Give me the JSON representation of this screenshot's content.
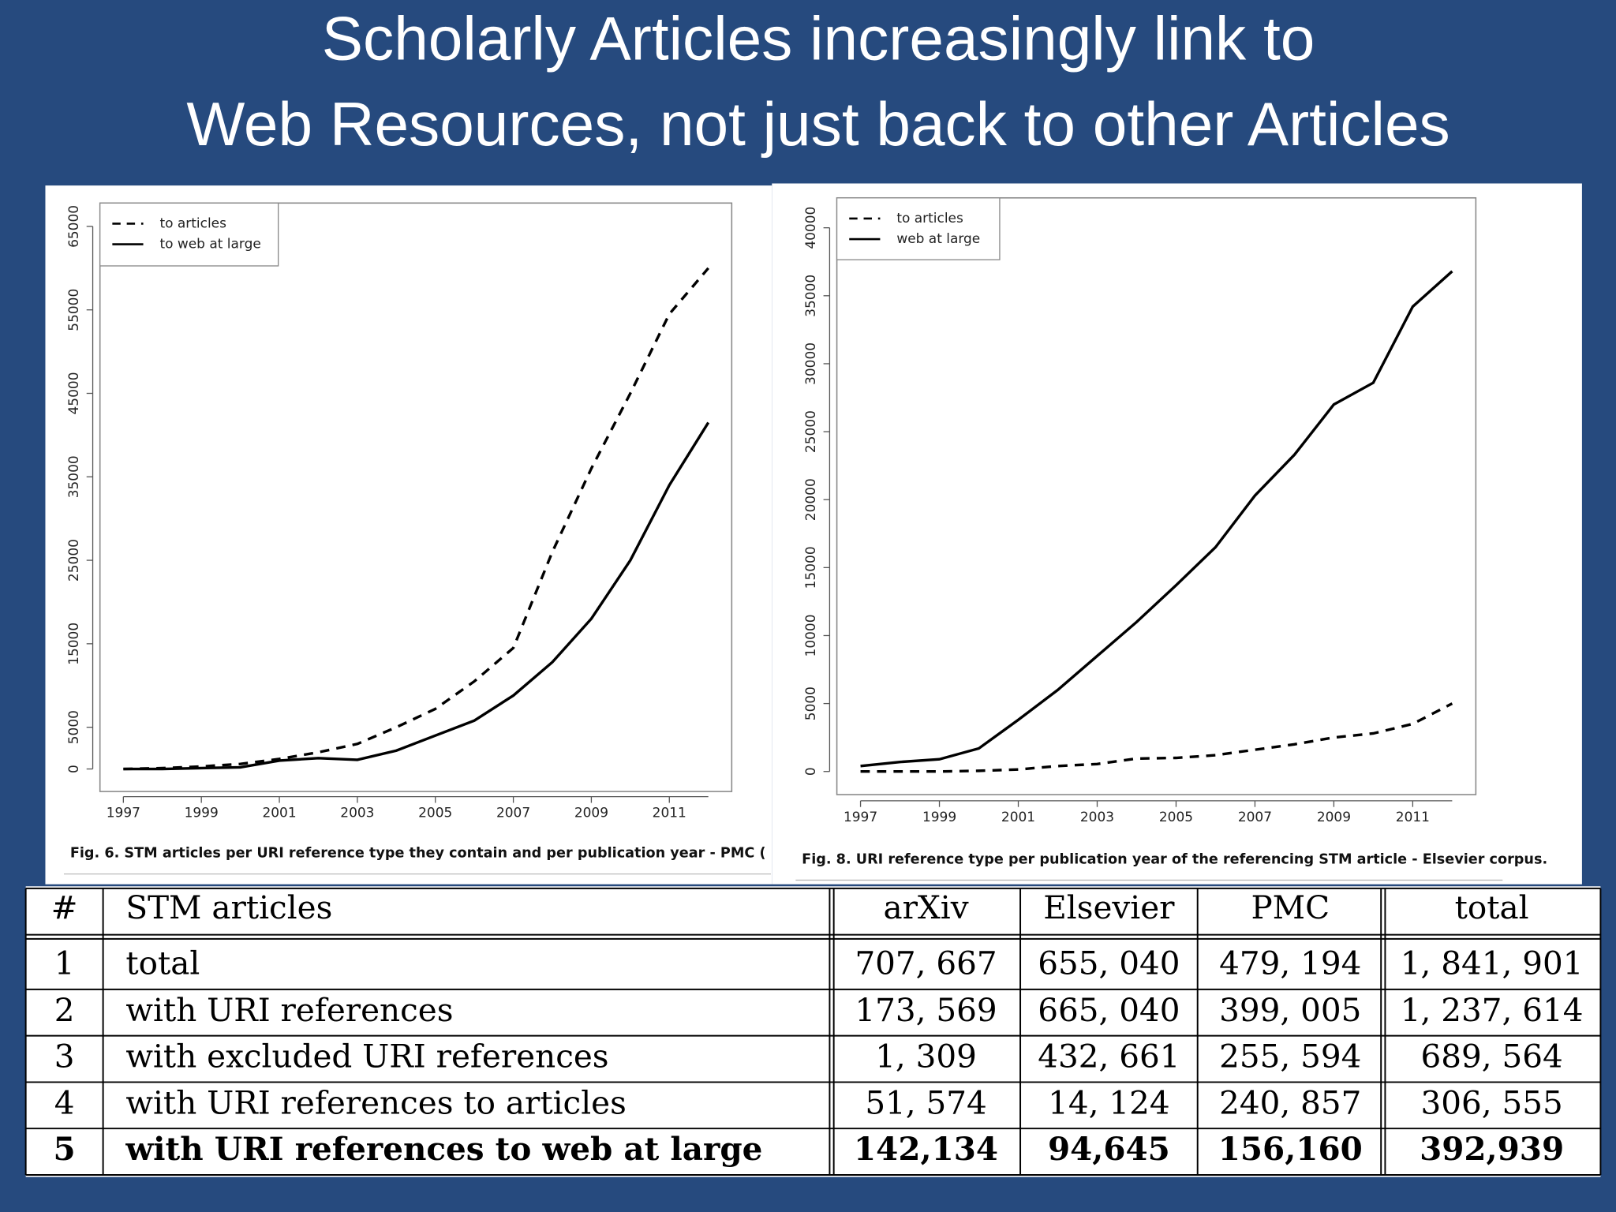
{
  "header": {
    "title_lines": [
      "Scholarly Articles increasingly link to",
      "Web Resources, not just back to other Articles"
    ]
  },
  "chart_data": [
    {
      "type": "line",
      "caption": "Fig. 6. STM articles per URI reference type they contain and per publication year - PMC (",
      "x": [
        1997,
        1998,
        1999,
        2000,
        2001,
        2002,
        2003,
        2004,
        2005,
        2006,
        2007,
        2008,
        2009,
        2010,
        2011,
        2012
      ],
      "series": [
        {
          "name": "to articles",
          "color": "#000000",
          "dashed": true,
          "values": [
            0,
            100,
            300,
            600,
            1200,
            2000,
            3000,
            5000,
            7200,
            10500,
            14500,
            26000,
            36000,
            45000,
            54500,
            60000
          ]
        },
        {
          "name": "to web at large",
          "color": "#000000",
          "dashed": false,
          "values": [
            0,
            0,
            100,
            200,
            1000,
            1300,
            1100,
            2200,
            4000,
            5800,
            8800,
            12800,
            18000,
            25000,
            34000,
            41500
          ]
        }
      ],
      "xlim": [
        1996.4,
        2012.6
      ],
      "xticks": [
        1997,
        1999,
        2001,
        2003,
        2005,
        2007,
        2009,
        2011
      ],
      "ylim": [
        -2700,
        67800
      ],
      "yticks": [
        0,
        5000,
        15000,
        25000,
        35000,
        45000,
        55000,
        65000
      ],
      "legend": "top-left"
    },
    {
      "type": "line",
      "caption": "Fig. 8. URI reference type per publication year of the referencing STM article - Elsevier corpus.",
      "x": [
        1997,
        1998,
        1999,
        2000,
        2001,
        2002,
        2003,
        2004,
        2005,
        2006,
        2007,
        2008,
        2009,
        2010,
        2011,
        2012
      ],
      "series": [
        {
          "name": "to articles",
          "color": "#000000",
          "dashed": true,
          "values": [
            0,
            0,
            0,
            50,
            150,
            400,
            550,
            950,
            1000,
            1200,
            1600,
            2000,
            2500,
            2800,
            3500,
            5000
          ]
        },
        {
          "name": "web at large",
          "color": "#000000",
          "dashed": false,
          "values": [
            400,
            700,
            900,
            1700,
            3800,
            6000,
            8500,
            11000,
            13700,
            16500,
            20300,
            23300,
            27000,
            28600,
            34200,
            36800
          ]
        }
      ],
      "xlim": [
        1996.4,
        2012.6
      ],
      "xticks": [
        1997,
        1999,
        2001,
        2003,
        2005,
        2007,
        2009,
        2011
      ],
      "ylim": [
        -1700,
        42200
      ],
      "yticks": [
        0,
        5000,
        10000,
        15000,
        20000,
        25000,
        30000,
        35000,
        40000
      ],
      "legend": "top-left"
    }
  ],
  "table": {
    "header": [
      "#",
      "STM articles",
      "arXiv",
      "Elsevier",
      "PMC",
      "total"
    ],
    "rows": [
      [
        "1",
        "total",
        "707, 667",
        "655, 040",
        "479, 194",
        "1, 841, 901"
      ],
      [
        "2",
        "with URI references",
        "173, 569",
        "665, 040",
        "399, 005",
        "1, 237, 614"
      ],
      [
        "3",
        "with excluded URI references",
        "1, 309",
        "432, 661",
        "255, 594",
        "689, 564"
      ],
      [
        "4",
        "with URI references to articles",
        "51, 574",
        "14, 124",
        "240, 857",
        "306, 555"
      ],
      [
        "5",
        "with URI references to web at large",
        "142,134",
        "94,645",
        "156,160",
        "392,939"
      ]
    ],
    "bold_rows": [
      4
    ]
  }
}
